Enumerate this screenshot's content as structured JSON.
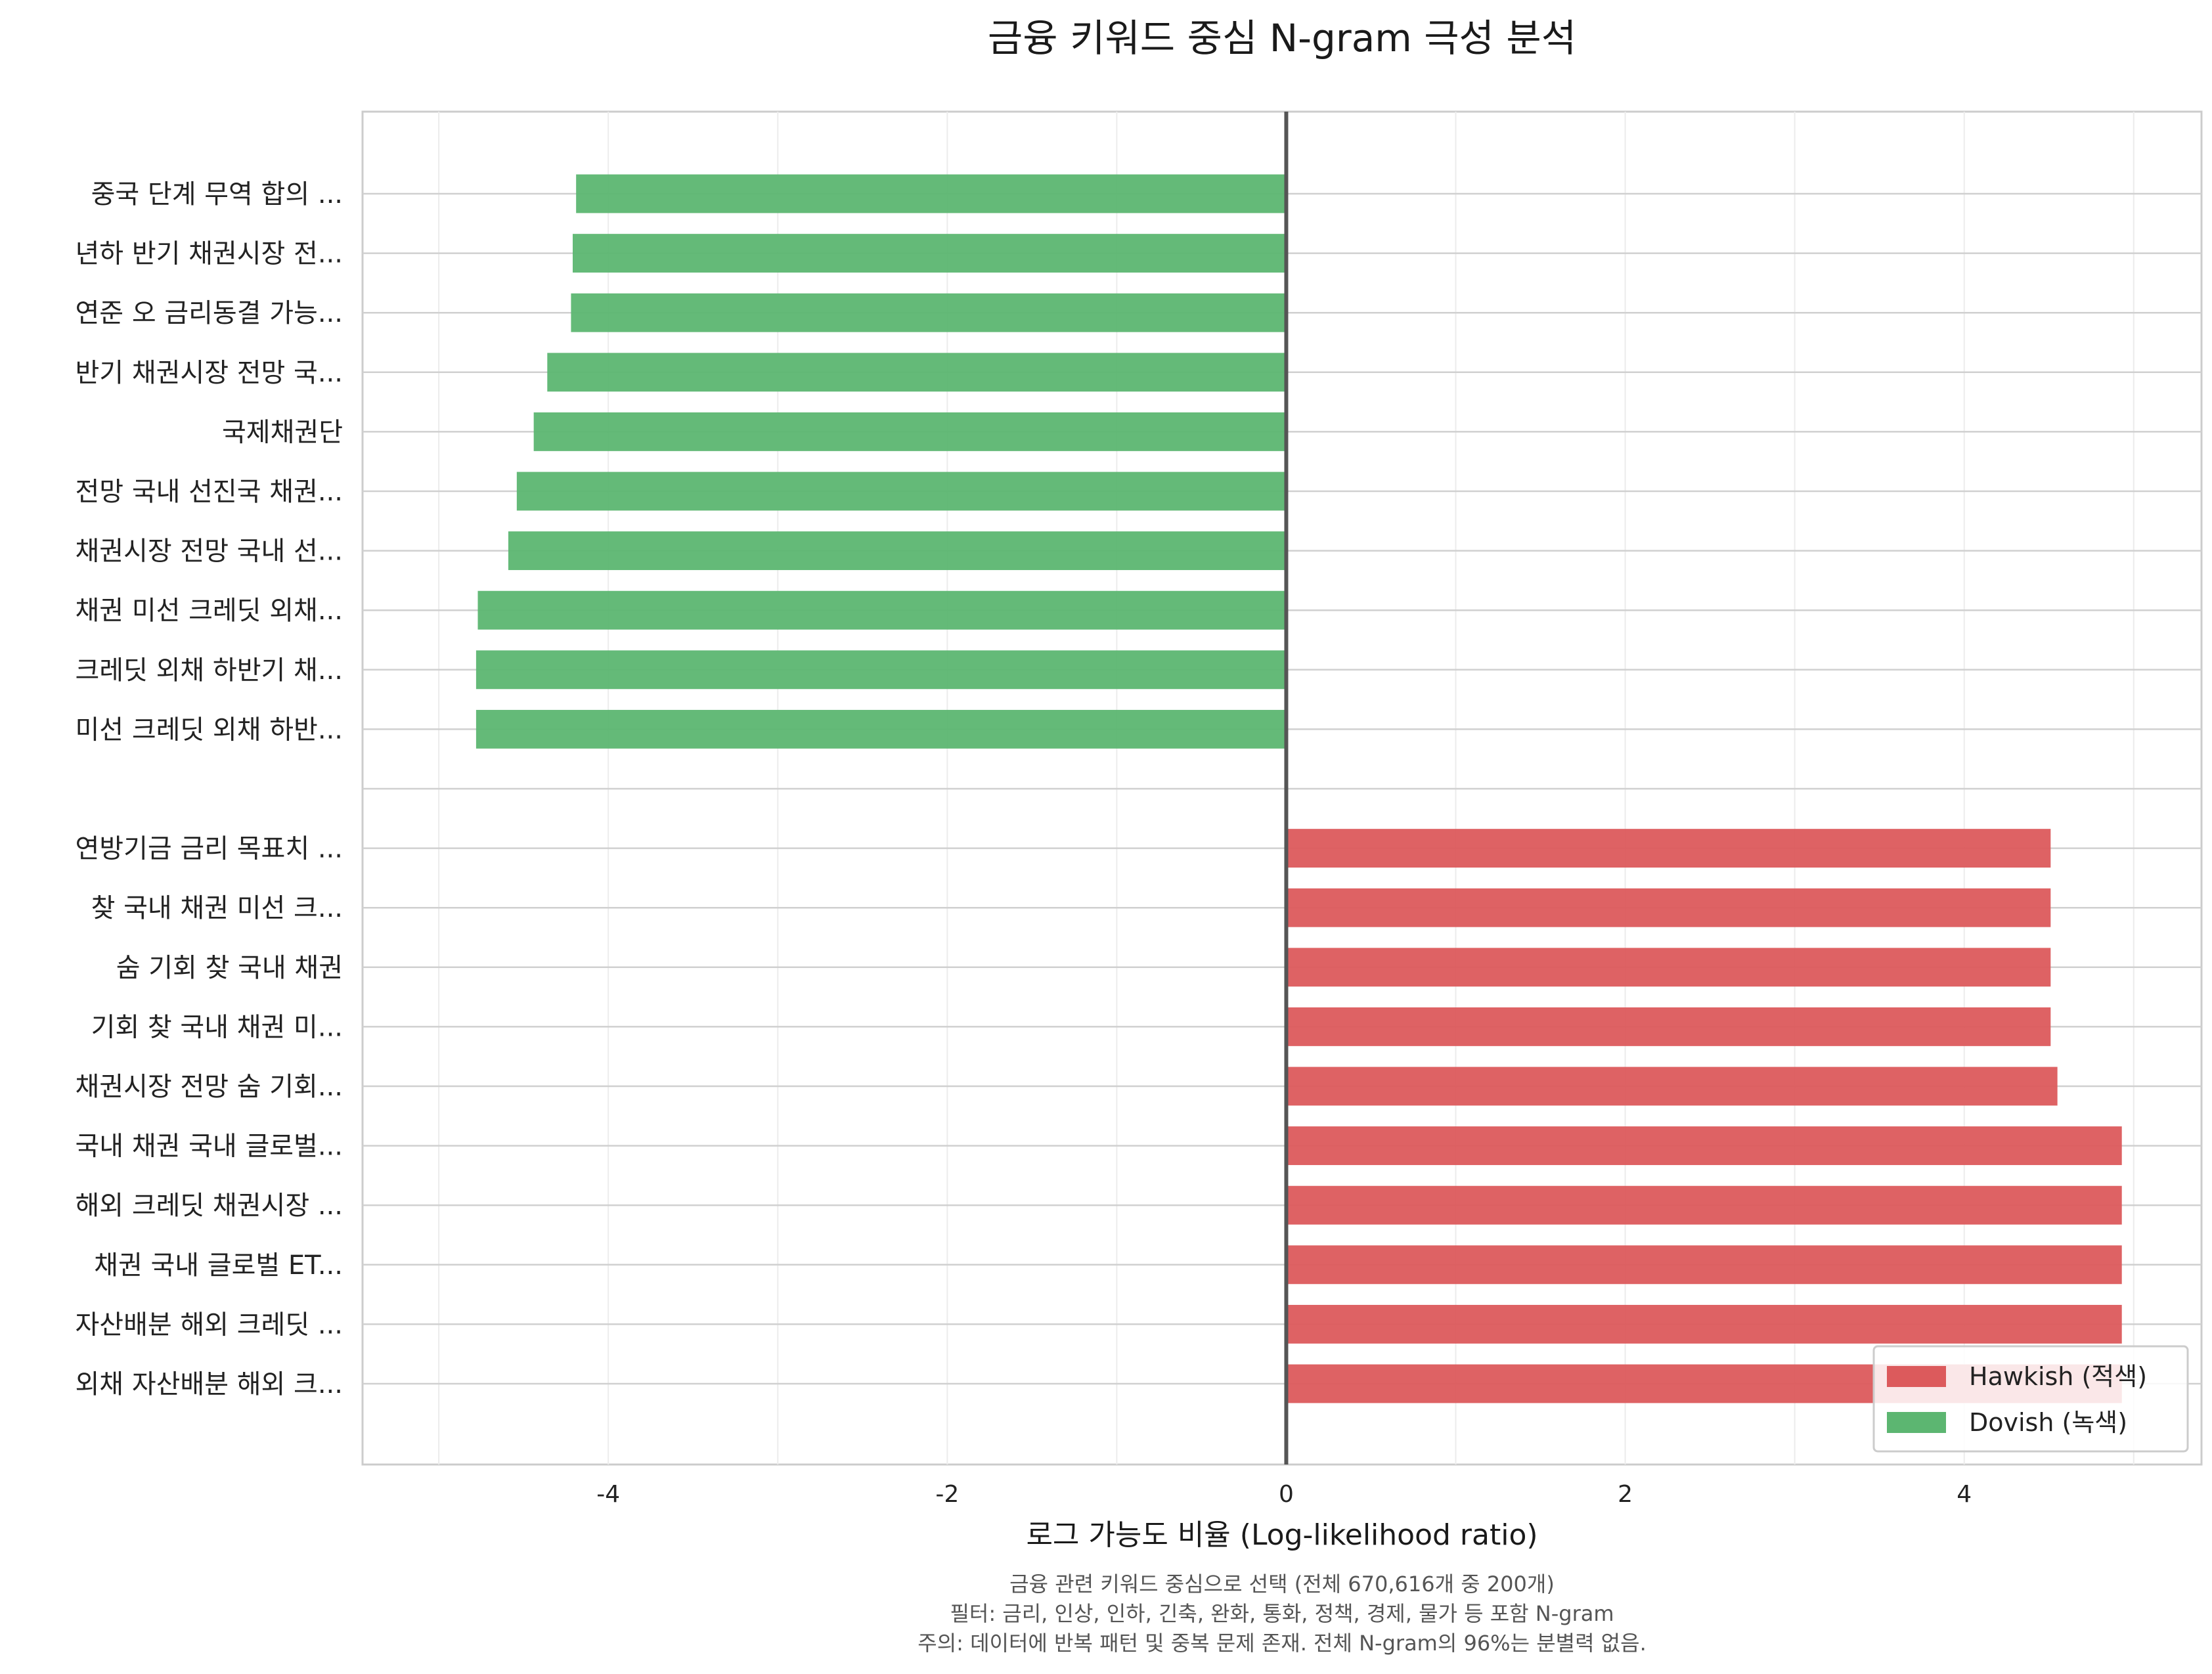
{
  "chart_data": {
    "type": "bar",
    "orientation": "horizontal",
    "title": "금융 키워드 중심 N-gram 극성 분석",
    "xlabel": "로그 가능도 비율 (Log-likelihood ratio)",
    "ylabel": "",
    "xlim": [
      -5.45,
      5.4
    ],
    "x_ticks": [
      -4,
      -2,
      0,
      2,
      4
    ],
    "x_tick_labels": [
      "-4",
      "-2",
      "0",
      "2",
      "4"
    ],
    "grid": true,
    "legend_position": "lower-right",
    "colors": {
      "hawkish": "#dc5a5c",
      "dovish": "#5cb671"
    },
    "categories": [
      "중국 단계 무역 합의 ...",
      "년하 반기 채권시장 전...",
      "연준 오 금리동결 가능...",
      "반기 채권시장 전망 국...",
      "국제채권단",
      "전망 국내 선진국 채권...",
      "채권시장 전망 국내 선...",
      "채권 미선 크레딧 외채...",
      "크레딧 외채 하반기 채...",
      "미선 크레딧 외채 하반...",
      "",
      "연방기금 금리 목표치 ...",
      "찾 국내 채권 미선 크...",
      "숨 기회 찾 국내 채권",
      "기회 찾 국내 채권 미...",
      "채권시장 전망 숨 기회...",
      "국내 채권 국내 글로벌...",
      "해외 크레딧 채권시장 ...",
      "채권 국내 글로벌 ET...",
      "자산배분 해외 크레딧 ...",
      "외채 자산배분 해외 크..."
    ],
    "values": [
      -4.19,
      -4.21,
      -4.22,
      -4.36,
      -4.44,
      -4.54,
      -4.59,
      -4.77,
      -4.78,
      -4.78,
      null,
      4.51,
      4.51,
      4.51,
      4.51,
      4.55,
      4.93,
      4.93,
      4.93,
      4.93,
      4.93
    ],
    "series_key": [
      "dovish",
      "dovish",
      "dovish",
      "dovish",
      "dovish",
      "dovish",
      "dovish",
      "dovish",
      "dovish",
      "dovish",
      null,
      "hawkish",
      "hawkish",
      "hawkish",
      "hawkish",
      "hawkish",
      "hawkish",
      "hawkish",
      "hawkish",
      "hawkish",
      "hawkish"
    ],
    "legend": [
      {
        "key": "hawkish",
        "label": "Hawkish (적색)"
      },
      {
        "key": "dovish",
        "label": "Dovish (녹색)"
      }
    ],
    "notes": [
      "금융 관련 키워드 중심으로 선택 (전체 670,616개 중 200개)",
      "필터: 금리, 인상, 인하, 긴축, 완화, 통화, 정책, 경제, 물가 등 포함 N-gram",
      "주의: 데이터에 반복 패턴 및 중복 문제 존재. 전체 N-gram의 96%는 분별력 없음."
    ]
  }
}
